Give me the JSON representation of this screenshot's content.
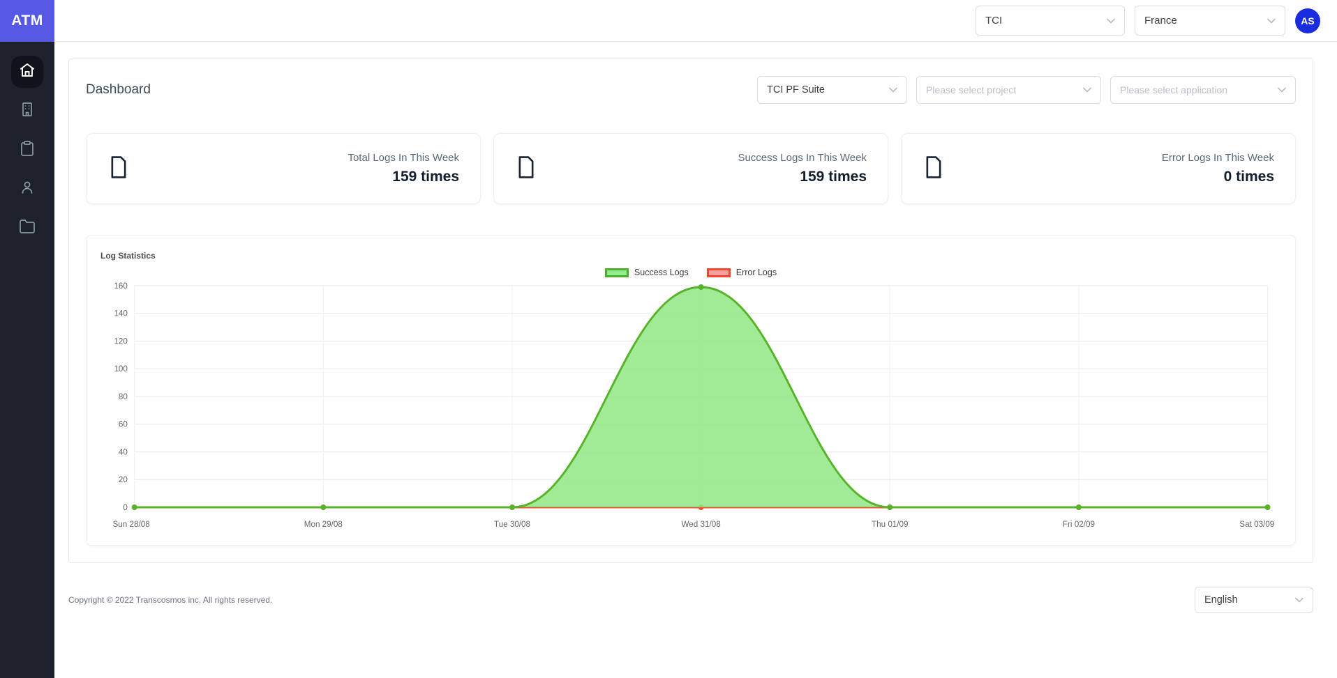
{
  "app": {
    "logo": "ATM",
    "colors": {
      "sidebar_bg": "#1d212c",
      "logo_bg": "#5659e4",
      "avatar_bg": "#1a2ce0",
      "active_nav_bg": "#10131c"
    }
  },
  "sidebar": {
    "items": [
      "home",
      "building",
      "clipboard",
      "user",
      "folder"
    ],
    "active_item": "home"
  },
  "header": {
    "org_select": "TCI",
    "country_select": "France",
    "avatar_initials": "AS"
  },
  "page": {
    "title": "Dashboard",
    "filters": {
      "suite_value": "TCI PF Suite",
      "project_placeholder": "Please select project",
      "application_placeholder": "Please select application"
    }
  },
  "cards": [
    {
      "title": "Total Logs In This Week",
      "value": "159 times"
    },
    {
      "title": "Success Logs In This Week",
      "value": "159 times"
    },
    {
      "title": "Error Logs In This Week",
      "value": "0 times"
    }
  ],
  "chart_data": {
    "type": "area",
    "title": "Log Statistics",
    "x": [
      "Sun 28/08",
      "Mon 29/08",
      "Tue 30/08",
      "Wed 31/08",
      "Thu 01/09",
      "Fri 02/09",
      "Sat 03/09"
    ],
    "series": [
      {
        "name": "Success Logs",
        "values": [
          0,
          0,
          0,
          159,
          0,
          0,
          0
        ],
        "line_color": "#56b32a",
        "fill_color": "rgba(144,230,132,0.85)",
        "swatch_fill": "#90ee90",
        "swatch_border": "#4caf27"
      },
      {
        "name": "Error Logs",
        "values": [
          0,
          0,
          0,
          0,
          0,
          0,
          0
        ],
        "line_color": "#f4502e",
        "fill_color": "rgba(247,154,148,0.85)",
        "swatch_fill": "#f6a1a0",
        "swatch_border": "#f1452c"
      }
    ],
    "ylim": [
      0,
      160
    ],
    "ytick_step": 20,
    "grid": true,
    "legend_position": "top"
  },
  "footer": {
    "copyright": "Copyright © 2022 Transcosmos inc. All rights reserved.",
    "language_select": "English"
  }
}
